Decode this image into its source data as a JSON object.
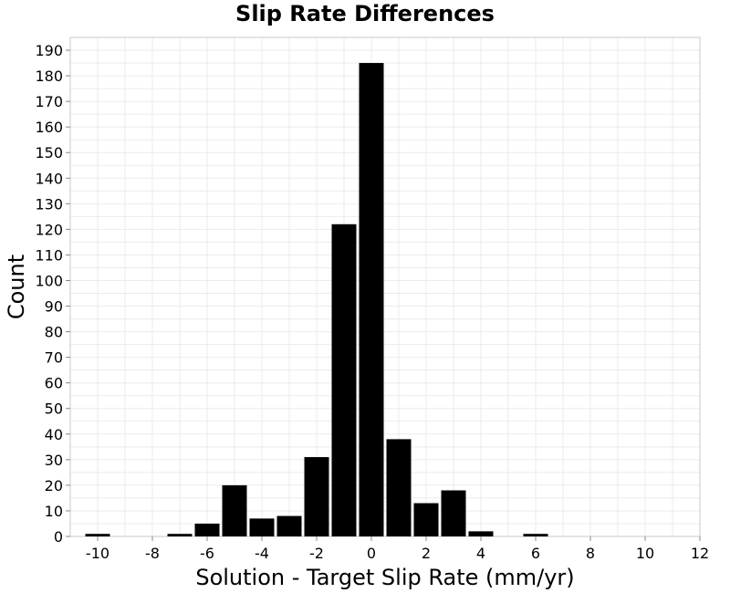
{
  "chart_data": {
    "type": "bar",
    "title": "Slip Rate Differences",
    "xlabel": "Solution - Target Slip Rate (mm/yr)",
    "ylabel": "Count",
    "xlim": [
      -11,
      12
    ],
    "ylim": [
      0,
      195
    ],
    "xticks": [
      -10,
      -8,
      -6,
      -4,
      -2,
      0,
      2,
      4,
      6,
      8,
      10,
      12
    ],
    "yticks": [
      0,
      10,
      20,
      30,
      40,
      50,
      60,
      70,
      80,
      90,
      100,
      110,
      120,
      130,
      140,
      150,
      160,
      170,
      180,
      190
    ],
    "grid": true,
    "bar_color": "#000000",
    "bins": [
      {
        "x": -10,
        "count": 1
      },
      {
        "x": -9,
        "count": 0
      },
      {
        "x": -8,
        "count": 0
      },
      {
        "x": -7,
        "count": 1
      },
      {
        "x": -6,
        "count": 5
      },
      {
        "x": -5,
        "count": 20
      },
      {
        "x": -4,
        "count": 7
      },
      {
        "x": -3,
        "count": 8
      },
      {
        "x": -2,
        "count": 31
      },
      {
        "x": -1,
        "count": 122
      },
      {
        "x": 0,
        "count": 185
      },
      {
        "x": 1,
        "count": 38
      },
      {
        "x": 2,
        "count": 13
      },
      {
        "x": 3,
        "count": 18
      },
      {
        "x": 4,
        "count": 2
      },
      {
        "x": 5,
        "count": 0
      },
      {
        "x": 6,
        "count": 1
      }
    ]
  }
}
